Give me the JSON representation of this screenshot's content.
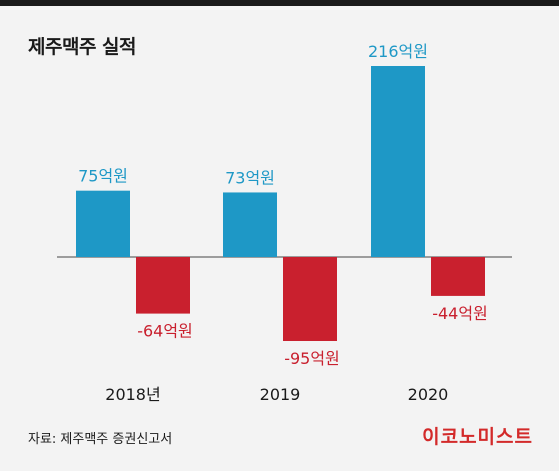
{
  "title": "제주맥주 실적",
  "source": "자료: 제주맥주 증권신고서",
  "brand": "이코노미스트",
  "colors": {
    "positive": "#1e98c6",
    "negative": "#c9202e",
    "label_positive": "#1e98c6",
    "label_negative": "#c9202e"
  },
  "chart_data": {
    "type": "bar",
    "categories": [
      "2018년",
      "2019",
      "2020"
    ],
    "series": [
      {
        "values": [
          75,
          73,
          216
        ],
        "labels": [
          "75억원",
          "73억원",
          "216억원"
        ]
      },
      {
        "values": [
          -64,
          -95,
          -44
        ],
        "labels": [
          "-64억원",
          "-95억원",
          "-44억원"
        ]
      }
    ],
    "title": "제주맥주 실적",
    "xlabel": "",
    "ylabel": "",
    "ylim": [
      -95,
      216
    ],
    "grid": false,
    "legend": "none"
  }
}
